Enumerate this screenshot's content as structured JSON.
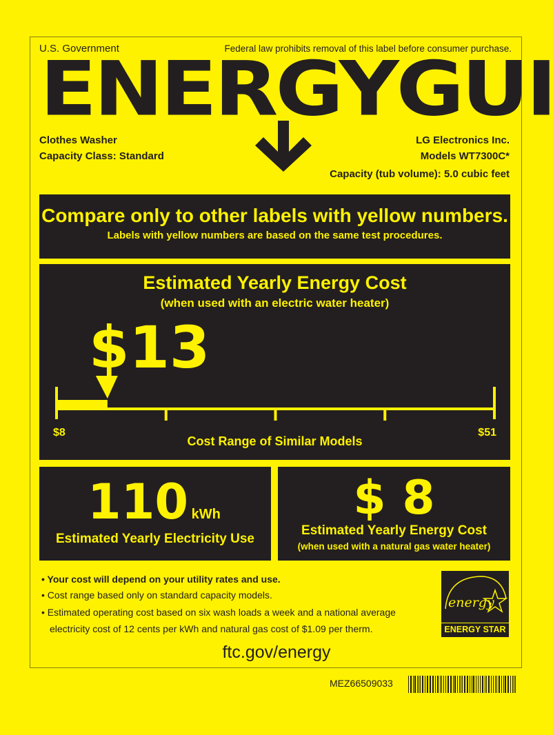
{
  "header": {
    "gov": "U.S. Government",
    "notice": "Federal law prohibits removal of this label before consumer purchase.",
    "title": "ENERGYGUIDE"
  },
  "product": {
    "type": "Clothes Washer",
    "capacity_class": "Capacity Class: Standard",
    "manufacturer": "LG Electronics Inc.",
    "models": "Models WT7300C*",
    "capacity": "Capacity (tub volume): 5.0 cubic feet"
  },
  "compare": {
    "headline": "Compare only to other labels with yellow numbers.",
    "sub": "Labels with yellow numbers are based on the same test procedures."
  },
  "electric_cost": {
    "title": "Estimated Yearly Energy Cost",
    "subtitle": "(when used with an electric water heater)",
    "value": "$13",
    "value_number": 13,
    "range_min": "$8",
    "range_max": "$51",
    "range_min_number": 8,
    "range_max_number": 51,
    "range_label": "Cost Range of Similar Models"
  },
  "electricity_use": {
    "value": "110",
    "unit": "kWh",
    "label": "Estimated Yearly Electricity Use"
  },
  "gas_cost": {
    "value": "$ 8",
    "title": "Estimated Yearly Energy Cost",
    "subtitle": "(when used with a natural gas water heater)"
  },
  "notes": [
    "Your cost will depend on your utility rates and use.",
    "Cost range based only on standard capacity models.",
    "Estimated operating cost based on six wash loads a week and a national average",
    "electricity cost of 12 cents per kWh and natural gas cost of $1.09 per therm."
  ],
  "energy_star": {
    "script": "energy",
    "label": "ENERGY STAR"
  },
  "url": "ftc.gov/energy",
  "part_number": "MEZ66509033",
  "colors": {
    "label_yellow": "#fef200",
    "ink": "#231f20"
  }
}
